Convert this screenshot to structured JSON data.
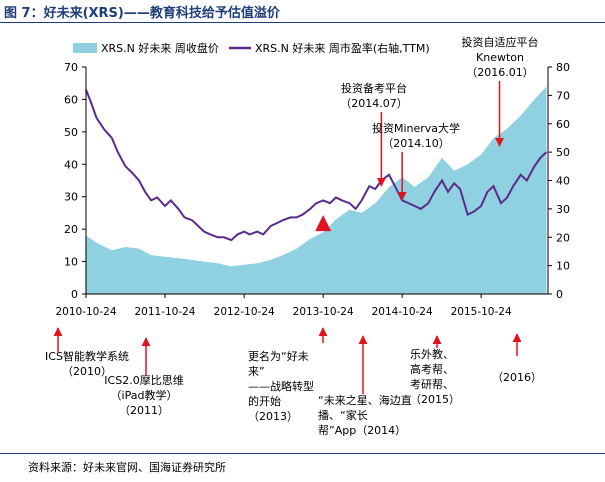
{
  "title": "图 7：好未来(XRS)——教育科技给予估值溢价",
  "source": "资料来源：好未来官网、国海证券研究所",
  "colors": {
    "area": "#8fd1e0",
    "line": "#5b2b8c",
    "arrow": "#e0141e",
    "marker": "#e0141e"
  },
  "chart_data": {
    "type": "area+line",
    "series": [
      {
        "name": "XRS.N 好未来 周收盘价",
        "axis": "left",
        "style": "area",
        "points": [
          [
            "2010-10-24",
            18
          ],
          [
            "2010-12-20",
            15.5
          ],
          [
            "2011-02-20",
            13.5
          ],
          [
            "2011-04-24",
            14.5
          ],
          [
            "2011-06-26",
            14
          ],
          [
            "2011-08-21",
            12
          ],
          [
            "2011-10-24",
            11.5
          ],
          [
            "2011-12-25",
            11
          ],
          [
            "2012-02-26",
            10.5
          ],
          [
            "2012-04-22",
            10
          ],
          [
            "2012-06-24",
            9.5
          ],
          [
            "2012-08-26",
            8.5
          ],
          [
            "2012-10-24",
            9
          ],
          [
            "2012-12-23",
            9.5
          ],
          [
            "2013-02-24",
            10.5
          ],
          [
            "2013-04-21",
            12
          ],
          [
            "2013-06-23",
            14
          ],
          [
            "2013-08-25",
            17
          ],
          [
            "2013-10-24",
            19
          ],
          [
            "2013-12-22",
            23
          ],
          [
            "2014-02-23",
            26
          ],
          [
            "2014-04-20",
            25
          ],
          [
            "2014-06-22",
            28
          ],
          [
            "2014-08-24",
            33
          ],
          [
            "2014-10-24",
            36
          ],
          [
            "2014-12-21",
            33
          ],
          [
            "2015-02-22",
            36
          ],
          [
            "2015-04-26",
            42
          ],
          [
            "2015-06-21",
            38
          ],
          [
            "2015-08-23",
            40
          ],
          [
            "2015-10-24",
            43
          ],
          [
            "2015-12-20",
            48
          ],
          [
            "2016-02-21",
            51
          ],
          [
            "2016-04-24",
            55
          ],
          [
            "2016-06-26",
            60
          ],
          [
            "2016-08-21",
            64
          ]
        ]
      },
      {
        "name": "XRS.N 好未来 周市盈率(右轴,TTM)",
        "axis": "right",
        "style": "line",
        "points": [
          [
            "2010-10-24",
            72
          ],
          [
            "2010-11-14",
            68
          ],
          [
            "2010-12-12",
            62
          ],
          [
            "2011-01-16",
            58
          ],
          [
            "2011-02-20",
            55
          ],
          [
            "2011-03-20",
            50
          ],
          [
            "2011-04-24",
            45
          ],
          [
            "2011-05-22",
            43
          ],
          [
            "2011-06-26",
            40
          ],
          [
            "2011-07-24",
            36
          ],
          [
            "2011-08-21",
            33
          ],
          [
            "2011-09-18",
            34
          ],
          [
            "2011-10-24",
            31
          ],
          [
            "2011-11-20",
            33
          ],
          [
            "2011-12-25",
            30
          ],
          [
            "2012-01-22",
            27
          ],
          [
            "2012-02-26",
            26
          ],
          [
            "2012-03-25",
            24
          ],
          [
            "2012-04-22",
            22
          ],
          [
            "2012-05-20",
            21
          ],
          [
            "2012-06-24",
            20
          ],
          [
            "2012-07-22",
            20
          ],
          [
            "2012-08-26",
            19
          ],
          [
            "2012-09-23",
            21
          ],
          [
            "2012-10-24",
            22
          ],
          [
            "2012-11-18",
            21
          ],
          [
            "2012-12-23",
            22
          ],
          [
            "2013-01-20",
            21
          ],
          [
            "2013-02-24",
            24
          ],
          [
            "2013-03-24",
            25
          ],
          [
            "2013-04-21",
            26
          ],
          [
            "2013-05-26",
            27
          ],
          [
            "2013-06-23",
            27
          ],
          [
            "2013-07-21",
            28
          ],
          [
            "2013-08-25",
            30
          ],
          [
            "2013-09-22",
            32
          ],
          [
            "2013-10-24",
            33
          ],
          [
            "2013-11-24",
            32
          ],
          [
            "2013-12-22",
            34
          ],
          [
            "2014-01-19",
            33
          ],
          [
            "2014-02-23",
            32
          ],
          [
            "2014-03-23",
            30
          ],
          [
            "2014-04-20",
            33
          ],
          [
            "2014-05-25",
            38
          ],
          [
            "2014-06-22",
            37
          ],
          [
            "2014-07-20",
            40
          ],
          [
            "2014-08-24",
            42
          ],
          [
            "2014-09-21",
            38
          ],
          [
            "2014-10-24",
            33
          ],
          [
            "2014-11-23",
            32
          ],
          [
            "2014-12-21",
            31
          ],
          [
            "2015-01-18",
            30
          ],
          [
            "2015-02-22",
            32
          ],
          [
            "2015-03-22",
            36
          ],
          [
            "2015-04-26",
            40
          ],
          [
            "2015-05-24",
            36
          ],
          [
            "2015-06-21",
            39
          ],
          [
            "2015-07-19",
            37
          ],
          [
            "2015-08-23",
            28
          ],
          [
            "2015-09-20",
            29
          ],
          [
            "2015-10-24",
            31
          ],
          [
            "2015-11-22",
            36
          ],
          [
            "2015-12-20",
            38
          ],
          [
            "2016-01-24",
            32
          ],
          [
            "2016-02-21",
            34
          ],
          [
            "2016-03-20",
            38
          ],
          [
            "2016-04-24",
            42
          ],
          [
            "2016-05-22",
            40
          ],
          [
            "2016-06-26",
            45
          ],
          [
            "2016-07-24",
            48
          ],
          [
            "2016-08-21",
            50
          ]
        ]
      }
    ],
    "x_ticks": [
      "2010-10-24",
      "2011-10-24",
      "2012-10-24",
      "2013-10-24",
      "2014-10-24",
      "2015-10-24"
    ],
    "x_range": [
      "2010-10-24",
      "2016-08-28"
    ],
    "y_left": {
      "min": 0,
      "max": 70,
      "ticks": [
        0,
        10,
        20,
        30,
        40,
        50,
        60,
        70
      ]
    },
    "y_right": {
      "min": 0,
      "max": 80,
      "ticks": [
        0,
        10,
        20,
        30,
        40,
        50,
        60,
        70,
        80
      ]
    },
    "legend_position": "top-left",
    "grid": false,
    "marker": {
      "x": "2013-10-24",
      "y_right": 25,
      "shape": "triangle"
    },
    "top_annotations": [
      {
        "lines": [
          "投资备考平台",
          "（2014.07）"
        ],
        "x": "2014-07-20"
      },
      {
        "lines": [
          "投资Minerva大学",
          "（2014.10）"
        ],
        "x": "2014-10-24"
      },
      {
        "lines": [
          "投资自适应平台",
          "Knewton",
          "（2016.01）"
        ],
        "x": "2016-01-17"
      }
    ],
    "bottom_annotations": [
      {
        "lines": [
          "ICS智能教学系统",
          "（2010）"
        ],
        "x": "2010-10-24"
      },
      {
        "lines": [
          "ICS2.0摩比思维",
          "（iPad教学）",
          "（2011）"
        ],
        "x": "2011-03-20"
      },
      {
        "lines": [
          "更名为“好未",
          "来”",
          "——战略转型",
          "的开始",
          "（2013）"
        ],
        "x": "2013-08-25"
      },
      {
        "lines": [
          "“未来之星、海边直",
          "播、“家长",
          "帮”App（2014）"
        ],
        "x": "2014-02-23"
      },
      {
        "lines": [
          "乐外教、",
          "高考帮、",
          "考研帮、",
          "（2015）"
        ],
        "x": "2015-01-18"
      },
      {
        "lines": [
          "（2016）"
        ],
        "x": "2016-03-20"
      }
    ]
  }
}
